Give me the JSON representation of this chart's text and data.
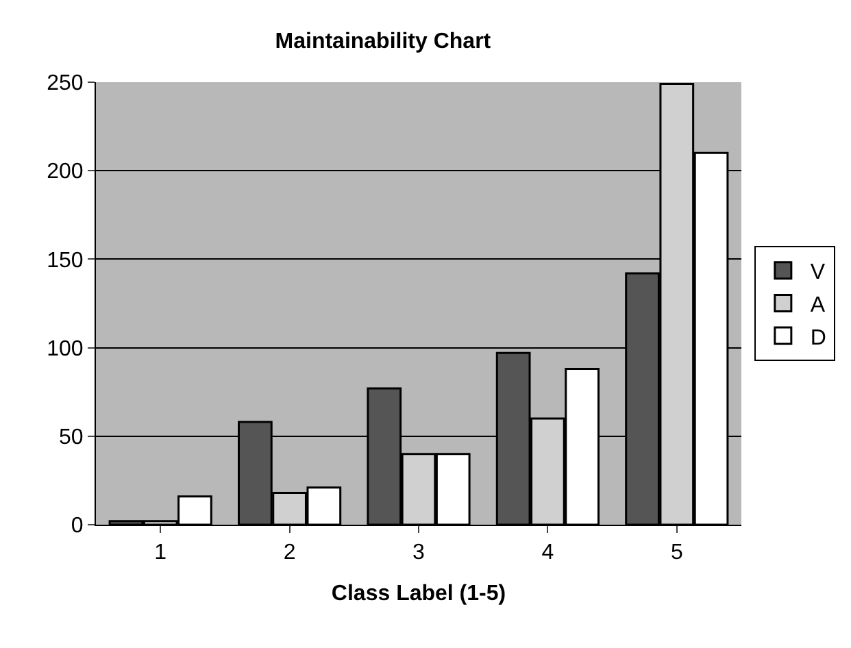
{
  "chart_data": {
    "type": "bar",
    "title": "Maintainability Chart",
    "xlabel": "Class Label (1-5)",
    "categories": [
      "1",
      "2",
      "3",
      "4",
      "5"
    ],
    "series": [
      {
        "name": "V",
        "color": "#555555",
        "values": [
          2,
          58,
          77,
          97,
          142
        ]
      },
      {
        "name": "A",
        "color": "#d0d0d0",
        "values": [
          2,
          18,
          40,
          60,
          249
        ]
      },
      {
        "name": "D",
        "color": "#ffffff",
        "values": [
          16,
          21,
          40,
          88,
          210
        ]
      }
    ],
    "ylim": [
      0,
      250
    ],
    "yticks": [
      0,
      50,
      100,
      150,
      200,
      250
    ],
    "grid": "y",
    "legend": "right"
  }
}
